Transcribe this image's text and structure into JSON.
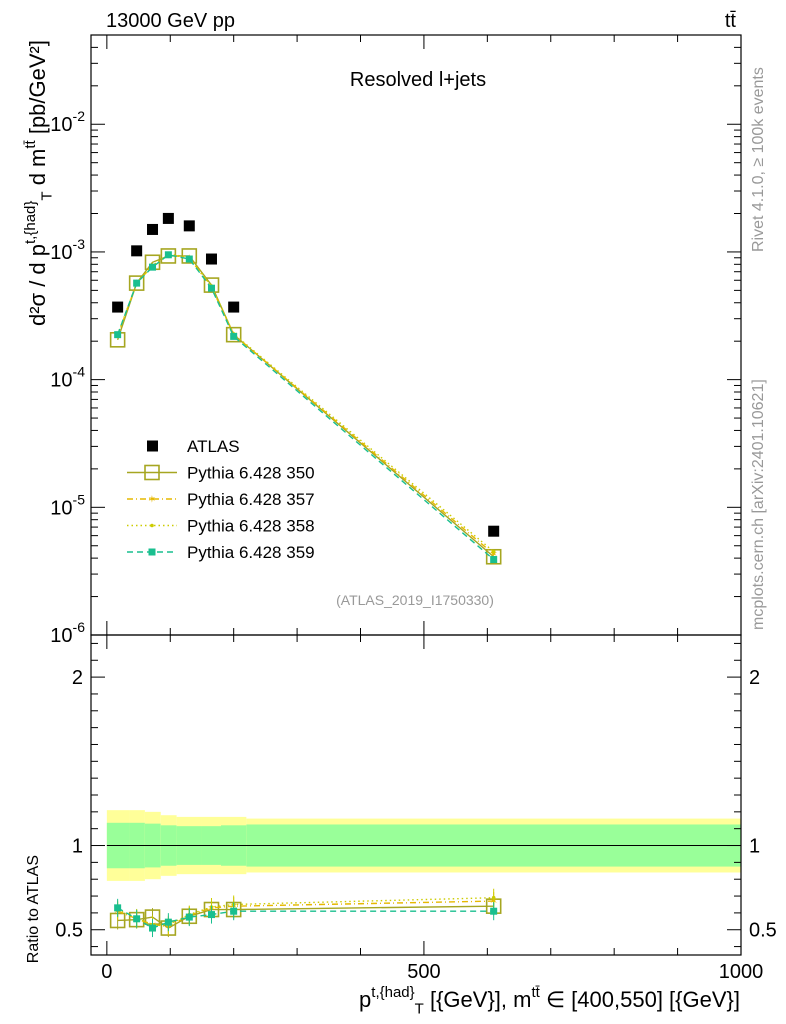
{
  "header": {
    "energy": "13000 GeV pp",
    "process": "tt̄"
  },
  "side_labels": {
    "rivet": "Rivet 4.1.0, ≥ 100k events",
    "mcplots": "mcplots.cern.ch [arXiv:2401.10621]"
  },
  "chart_data": {
    "type": "scatter",
    "title": "Resolved l+jets",
    "reference": "(ATLAS_2019_I1750330)",
    "main": {
      "ylabel": "d²σ / d p^{t,{had}}_{T} d m^{tt̄} [pb/GeV²]",
      "yscale": "log",
      "ylim": [
        1e-06,
        0.05
      ],
      "ytick_labels": [
        "10^{-2}",
        "10^{-3}",
        "10^{-4}",
        "10^{-5}",
        "10^{-6}"
      ]
    },
    "xlabel": "p^{t,{had}}_{T} [{GeV}], m^{tt̄} ∈ [400,550] [{GeV}]",
    "xlim": [
      -25,
      1000
    ],
    "xtick_labels": [
      "0",
      "500",
      "1000"
    ],
    "x": [
      17,
      47,
      72,
      97,
      130,
      165,
      200,
      610
    ],
    "data": {
      "name": "ATLAS",
      "y": [
        0.00037,
        0.00102,
        0.0015,
        0.00183,
        0.0016,
        0.00088,
        0.00037,
        6.5e-06
      ]
    },
    "series": [
      {
        "name": "Pythia 6.428 350",
        "color": "#a6a621",
        "style": "solid-open-square",
        "y": [
          0.000205,
          0.00057,
          0.00083,
          0.00093,
          0.00093,
          0.00055,
          0.000225,
          4.1e-06
        ],
        "ratio": [
          0.555,
          0.56,
          0.575,
          0.51,
          0.58,
          0.62,
          0.62,
          0.64
        ]
      },
      {
        "name": "Pythia 6.428 357",
        "color": "#e6b800",
        "style": "dashdot-star",
        "y": [
          0.00022,
          0.00057,
          0.00078,
          0.00095,
          0.0009,
          0.00053,
          0.000225,
          4.3e-06
        ],
        "ratio": [
          0.61,
          0.565,
          0.53,
          0.52,
          0.585,
          0.63,
          0.64,
          0.67
        ]
      },
      {
        "name": "Pythia 6.428 358",
        "color": "#cccc00",
        "style": "dotted-dot",
        "y": [
          0.000225,
          0.00057,
          0.00078,
          0.00096,
          0.00091,
          0.00054,
          0.000228,
          4.5e-06
        ],
        "ratio": [
          0.62,
          0.57,
          0.53,
          0.53,
          0.59,
          0.635,
          0.65,
          0.69
        ]
      },
      {
        "name": "Pythia 6.428 359",
        "color": "#19bf8f",
        "style": "dashed-filled-square",
        "y": [
          0.000225,
          0.00057,
          0.00076,
          0.00095,
          0.00088,
          0.00052,
          0.000218,
          3.9e-06
        ],
        "ratio": [
          0.63,
          0.565,
          0.51,
          0.545,
          0.575,
          0.59,
          0.61,
          0.61
        ]
      }
    ],
    "ratio_panel": {
      "ylabel": "Ratio to ATLAS",
      "ylim": [
        0.35,
        2.25
      ],
      "ytick_labels": [
        "0.5",
        "1",
        "2"
      ],
      "bands": {
        "edges": [
          0,
          35,
          60,
          85,
          110,
          150,
          180,
          220,
          1000
        ],
        "stat_half": [
          0.135,
          0.135,
          0.13,
          0.12,
          0.115,
          0.115,
          0.12,
          0.125
        ],
        "total_half": [
          0.21,
          0.21,
          0.2,
          0.18,
          0.17,
          0.17,
          0.17,
          0.16
        ],
        "stat_color": "#99ff99",
        "total_color": "#ffff99"
      }
    }
  }
}
